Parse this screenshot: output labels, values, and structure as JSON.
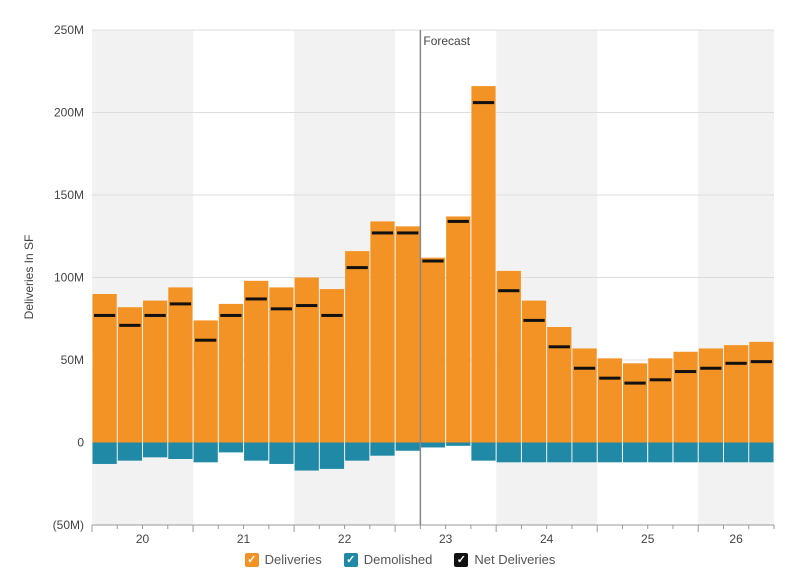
{
  "chart_data": {
    "type": "bar",
    "ylabel": "Deliveries In SF",
    "y_ticks": [
      "250M",
      "200M",
      "150M",
      "100M",
      "50M",
      "0",
      "(50M)"
    ],
    "ylim": [
      -50,
      250
    ],
    "y_unit": "M",
    "x_group_labels": [
      "20",
      "21",
      "22",
      "23",
      "24",
      "25",
      "26"
    ],
    "quarters_per_group": 4,
    "forecast_label": "Forecast",
    "forecast_after_quarter": 13,
    "grid": true,
    "legend_position": "bottom",
    "colors": {
      "deliveries": "#f39325",
      "demolished": "#1f89a6",
      "net": "#111111",
      "band": "#f2f2f2",
      "gridline": "#dddddd",
      "forecast_line": "#888888"
    },
    "series": [
      {
        "name": "Deliveries",
        "values": [
          90,
          82,
          86,
          94,
          74,
          84,
          98,
          94,
          100,
          93,
          116,
          134,
          131,
          112,
          137,
          216,
          104,
          86,
          70,
          57,
          51,
          48,
          51,
          55,
          57,
          59,
          61
        ]
      },
      {
        "name": "Demolished",
        "values": [
          -13,
          -11,
          -9,
          -10,
          -12,
          -6,
          -11,
          -13,
          -17,
          -16,
          -11,
          -8,
          -5,
          -3,
          -2,
          -11,
          -12,
          -12,
          -12,
          -12,
          -12,
          -12,
          -12,
          -12,
          -12,
          -12,
          -12
        ]
      },
      {
        "name": "Net Deliveries",
        "values": [
          77,
          71,
          77,
          84,
          62,
          77,
          87,
          81,
          83,
          77,
          106,
          127,
          127,
          110,
          134,
          206,
          92,
          74,
          58,
          45,
          39,
          36,
          38,
          43,
          45,
          48,
          49
        ]
      }
    ]
  }
}
